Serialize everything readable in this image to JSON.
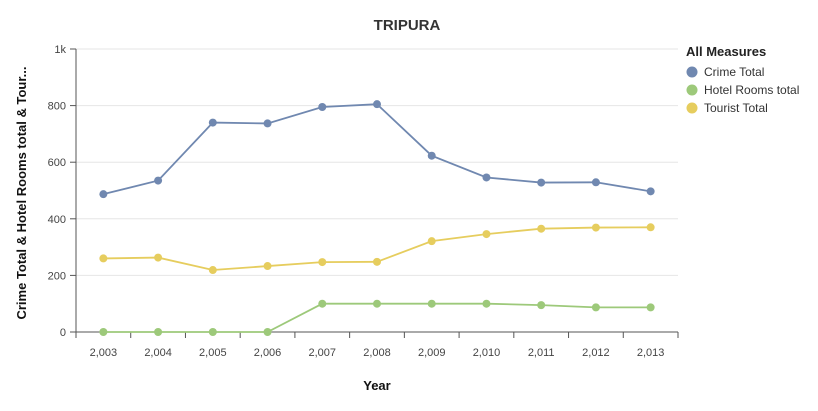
{
  "chart_data": {
    "type": "line",
    "title": "TRIPURA",
    "xlabel": "Year",
    "ylabel": "Crime Total & Hotel Rooms total & Tour...",
    "x": [
      "2,003",
      "2,004",
      "2,005",
      "2,006",
      "2,007",
      "2,008",
      "2,009",
      "2,010",
      "2,011",
      "2,012",
      "2,013"
    ],
    "ylim": [
      0,
      1000
    ],
    "yticks": [
      {
        "value": 0,
        "label": "0"
      },
      {
        "value": 200,
        "label": "200"
      },
      {
        "value": 400,
        "label": "400"
      },
      {
        "value": 600,
        "label": "600"
      },
      {
        "value": 800,
        "label": "800"
      },
      {
        "value": 1000,
        "label": "1k"
      }
    ],
    "grid": "horizontal",
    "legend": {
      "title": "All Measures",
      "position": "right"
    },
    "series": [
      {
        "name": "Crime Total",
        "color": "#7088b0",
        "values": [
          487,
          535,
          740,
          737,
          795,
          805,
          623,
          546,
          528,
          529,
          497
        ]
      },
      {
        "name": "Hotel Rooms total",
        "color": "#9dc97a",
        "values": [
          0,
          0,
          0,
          0,
          100,
          100,
          100,
          100,
          95,
          87,
          87
        ]
      },
      {
        "name": "Tourist Total",
        "color": "#e6cd5e",
        "values": [
          260,
          263,
          219,
          233,
          247,
          248,
          321,
          346,
          365,
          369,
          370
        ]
      }
    ]
  }
}
